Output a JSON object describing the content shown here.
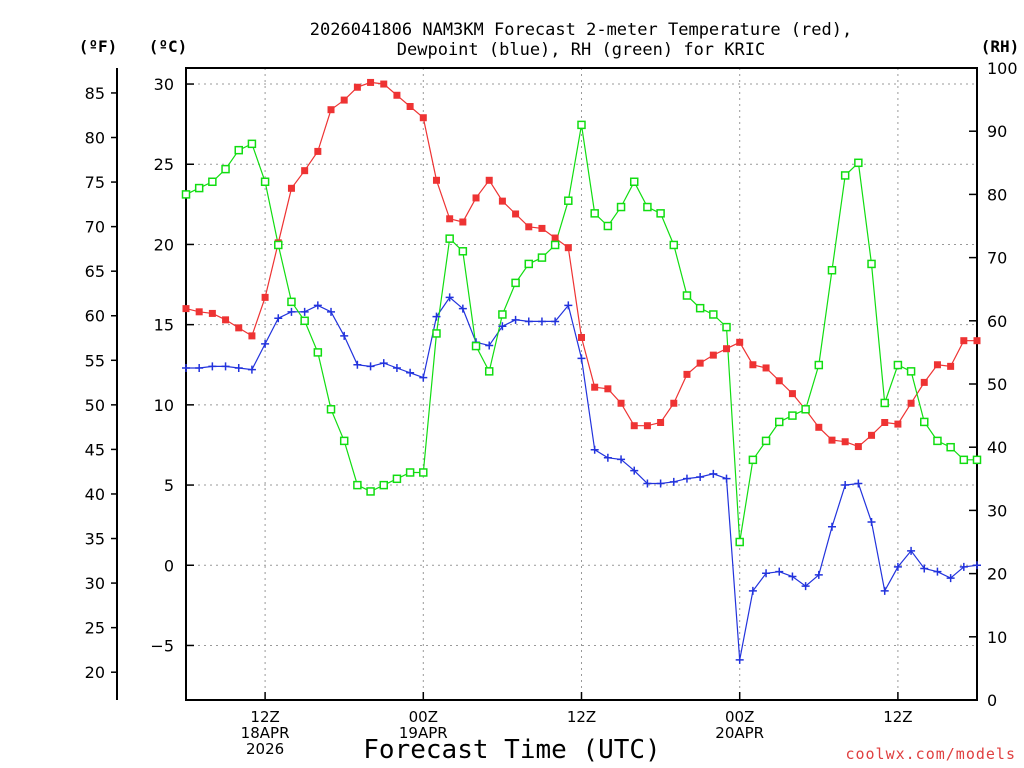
{
  "chart_data": {
    "type": "line",
    "title_line1": "2026041806 NAM3KM Forecast 2-meter Temperature (red),",
    "title_line2": "Dewpoint (blue), RH (green) for KRIC",
    "xlabel": "Forecast Time (UTC)",
    "credit": "coolwx.com/models",
    "unit_labels": {
      "fahrenheit": "(ºF)",
      "celsius": "(ºC)",
      "rh": "(RH)"
    },
    "x_ticks": [
      {
        "hour": 6,
        "lines": [
          "12Z",
          "18APR",
          "2026"
        ]
      },
      {
        "hour": 18,
        "lines": [
          "00Z",
          "19APR"
        ]
      },
      {
        "hour": 30,
        "lines": [
          "12Z"
        ]
      },
      {
        "hour": 42,
        "lines": [
          "00Z",
          "20APR"
        ]
      },
      {
        "hour": 54,
        "lines": [
          "12Z"
        ]
      }
    ],
    "x_range_hours": [
      0,
      60
    ],
    "celsius_axis": {
      "range": [
        -8.4,
        31
      ],
      "ticks": [
        -5,
        0,
        5,
        10,
        15,
        20,
        25,
        30
      ]
    },
    "fahrenheit_axis": {
      "ticks": [
        20,
        25,
        30,
        35,
        40,
        45,
        50,
        55,
        60,
        65,
        70,
        75,
        80,
        85
      ]
    },
    "rh_axis": {
      "range": [
        0,
        100
      ],
      "ticks": [
        0,
        10,
        20,
        30,
        40,
        50,
        60,
        70,
        80,
        90,
        100
      ]
    },
    "grid": true,
    "colors": {
      "temperature": "#ee3333",
      "dewpoint": "#2233dd",
      "rh": "#11dd11"
    },
    "series": [
      {
        "key": "temperature",
        "values": [
          16.0,
          15.8,
          15.7,
          15.3,
          14.8,
          14.3,
          16.7,
          20.1,
          23.5,
          24.6,
          25.8,
          28.4,
          29.0,
          29.8,
          30.1,
          30.0,
          29.3,
          28.6,
          27.9,
          24.0,
          21.6,
          21.4,
          22.9,
          24.0,
          22.7,
          21.9,
          21.1,
          21.0,
          20.4,
          19.8,
          14.2,
          11.1,
          11.0,
          10.1,
          8.7,
          8.7,
          8.9,
          10.1,
          11.9,
          12.6,
          13.1,
          13.5,
          13.9,
          12.5,
          12.3,
          11.5,
          10.7,
          9.7,
          8.6,
          7.8,
          7.7,
          7.4,
          8.1,
          8.9,
          8.8,
          10.1,
          11.4,
          12.5,
          12.4,
          14.0,
          14.0
        ]
      },
      {
        "key": "dewpoint",
        "values": [
          12.3,
          12.3,
          12.4,
          12.4,
          12.3,
          12.2,
          13.8,
          15.4,
          15.8,
          15.8,
          16.2,
          15.8,
          14.3,
          12.5,
          12.4,
          12.6,
          12.3,
          12.0,
          11.7,
          15.5,
          16.7,
          16.0,
          13.9,
          13.7,
          14.9,
          15.3,
          15.2,
          15.2,
          15.2,
          16.2,
          12.9,
          7.2,
          6.7,
          6.6,
          5.9,
          5.1,
          5.1,
          5.2,
          5.4,
          5.5,
          5.7,
          5.4,
          -5.9,
          -1.6,
          -0.5,
          -0.4,
          -0.7,
          -1.3,
          -0.6,
          2.4,
          5.0,
          5.1,
          2.7,
          -1.6,
          -0.1,
          0.9,
          -0.2,
          -0.4,
          -0.8,
          -0.1,
          0.0
        ]
      },
      {
        "key": "rh",
        "values": [
          80,
          81,
          82,
          84,
          87,
          88,
          82,
          72,
          63,
          60,
          55,
          46,
          41,
          34,
          33,
          34,
          35,
          36,
          36,
          58,
          73,
          71,
          56,
          52,
          61,
          66,
          69,
          70,
          72,
          79,
          91,
          77,
          75,
          78,
          82,
          78,
          77,
          72,
          64,
          62,
          61,
          59,
          25,
          38,
          41,
          44,
          45,
          46,
          53,
          68,
          83,
          85,
          69,
          47,
          53,
          52,
          44,
          41,
          40,
          38,
          38
        ]
      }
    ]
  }
}
